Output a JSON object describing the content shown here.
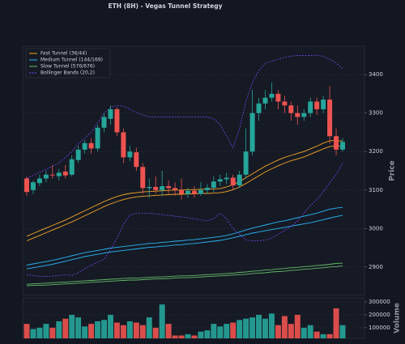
{
  "chart_data": {
    "type": "candlestick",
    "title": "ETH (8H) - Vegas Tunnel Strategy",
    "ylabel": "Price",
    "y2label": "Volume",
    "ylim": [
      2826,
      3474
    ],
    "yticks": [
      2900,
      3000,
      3100,
      3200,
      3300,
      3400
    ],
    "y2lim": [
      18000,
      331000
    ],
    "y2ticks": [
      100000,
      200000,
      300000
    ],
    "up_color": "#26a69a",
    "down_color": "#ef5350",
    "grid": true,
    "legend": "upper left",
    "open": [
      3130,
      3100,
      3118,
      3130,
      3140,
      3136,
      3148,
      3140,
      3178,
      3205,
      3222,
      3208,
      3262,
      3285,
      3310,
      3250,
      3185,
      3198,
      3160,
      3105,
      3108,
      3100,
      3110,
      3105,
      3100,
      3090,
      3098,
      3090,
      3100,
      3106,
      3122,
      3128,
      3132,
      3112,
      3140,
      3200,
      3300,
      3325,
      3340,
      3350,
      3330,
      3320,
      3300,
      3290,
      3300,
      3330,
      3310,
      3335,
      3240,
      3205
    ],
    "high": [
      3135,
      3125,
      3140,
      3150,
      3165,
      3155,
      3165,
      3190,
      3215,
      3230,
      3235,
      3270,
      3300,
      3320,
      3315,
      3260,
      3215,
      3210,
      3170,
      3130,
      3135,
      3150,
      3125,
      3120,
      3130,
      3105,
      3110,
      3120,
      3115,
      3135,
      3140,
      3145,
      3140,
      3150,
      3260,
      3360,
      3340,
      3360,
      3380,
      3360,
      3345,
      3330,
      3320,
      3310,
      3340,
      3340,
      3345,
      3370,
      3260,
      3235
    ],
    "low": [
      3085,
      3090,
      3110,
      3120,
      3130,
      3125,
      3130,
      3135,
      3170,
      3195,
      3195,
      3200,
      3250,
      3270,
      3240,
      3170,
      3175,
      3150,
      3090,
      3080,
      3090,
      3085,
      3090,
      3085,
      3075,
      3080,
      3080,
      3085,
      3090,
      3095,
      3110,
      3115,
      3100,
      3105,
      3130,
      3190,
      3280,
      3310,
      3330,
      3310,
      3300,
      3280,
      3270,
      3280,
      3290,
      3295,
      3300,
      3220,
      3190,
      3200
    ],
    "close": [
      3095,
      3120,
      3130,
      3140,
      3138,
      3145,
      3138,
      3180,
      3205,
      3222,
      3208,
      3262,
      3290,
      3310,
      3250,
      3185,
      3200,
      3160,
      3105,
      3108,
      3100,
      3110,
      3105,
      3100,
      3090,
      3098,
      3090,
      3100,
      3106,
      3122,
      3128,
      3132,
      3112,
      3140,
      3200,
      3300,
      3325,
      3340,
      3350,
      3330,
      3320,
      3300,
      3290,
      3300,
      3330,
      3310,
      3335,
      3240,
      3205,
      3225
    ],
    "volume": [
      130000,
      90000,
      100000,
      130000,
      100000,
      150000,
      170000,
      200000,
      180000,
      110000,
      130000,
      150000,
      160000,
      200000,
      140000,
      120000,
      150000,
      140000,
      120000,
      180000,
      100000,
      280000,
      130000,
      40000,
      40000,
      50000,
      40000,
      70000,
      80000,
      130000,
      110000,
      130000,
      140000,
      160000,
      170000,
      180000,
      200000,
      170000,
      210000,
      120000,
      190000,
      130000,
      200000,
      100000,
      120000,
      70000,
      50000,
      50000,
      250000,
      120000
    ],
    "overlays": [
      {
        "name": "Fast Tunnel (36/44)",
        "color": "#f5a623",
        "dashed": false,
        "lines": [
          [
            2980,
            2987,
            2994,
            3001,
            3008,
            3015,
            3022,
            3030,
            3038,
            3046,
            3054,
            3062,
            3070,
            3077,
            3083,
            3088,
            3091,
            3093,
            3095,
            3096,
            3097,
            3098,
            3099,
            3100,
            3100,
            3101,
            3101,
            3102,
            3102,
            3103,
            3104,
            3108,
            3114,
            3122,
            3132,
            3142,
            3152,
            3162,
            3170,
            3178,
            3185,
            3190,
            3195,
            3200,
            3207,
            3214,
            3222,
            3228,
            3229,
            3227
          ],
          [
            2968,
            2975,
            2982,
            2989,
            2996,
            3003,
            3010,
            3017,
            3025,
            3033,
            3041,
            3049,
            3057,
            3064,
            3070,
            3075,
            3079,
            3082,
            3084,
            3085,
            3086,
            3087,
            3088,
            3089,
            3089,
            3090,
            3090,
            3091,
            3091,
            3092,
            3093,
            3096,
            3101,
            3108,
            3117,
            3127,
            3137,
            3147,
            3155,
            3163,
            3170,
            3176,
            3181,
            3186,
            3193,
            3200,
            3207,
            3213,
            3215,
            3214
          ]
        ]
      },
      {
        "name": "Medium Tunnel (144/169)",
        "color": "#29b6f6",
        "dashed": false,
        "lines": [
          [
            2905,
            2908,
            2911,
            2914,
            2917,
            2921,
            2925,
            2929,
            2933,
            2937,
            2940,
            2943,
            2946,
            2949,
            2951,
            2953,
            2955,
            2957,
            2959,
            2961,
            2962,
            2964,
            2965,
            2967,
            2968,
            2970,
            2971,
            2973,
            2975,
            2977,
            2979,
            2982,
            2986,
            2991,
            2996,
            3001,
            3005,
            3009,
            3013,
            3017,
            3020,
            3024,
            3028,
            3032,
            3036,
            3040,
            3045,
            3050,
            3053,
            3055
          ],
          [
            2895,
            2898,
            2901,
            2904,
            2907,
            2911,
            2915,
            2919,
            2923,
            2927,
            2930,
            2933,
            2936,
            2939,
            2941,
            2943,
            2945,
            2947,
            2949,
            2951,
            2952,
            2954,
            2955,
            2957,
            2958,
            2960,
            2961,
            2963,
            2965,
            2967,
            2969,
            2972,
            2976,
            2980,
            2984,
            2988,
            2991,
            2994,
            2997,
            3000,
            3003,
            3006,
            3009,
            3012,
            3015,
            3019,
            3023,
            3027,
            3031,
            3034
          ]
        ]
      },
      {
        "name": "Slow Tunnel (576/676)",
        "color": "#66bb6a",
        "dashed": false,
        "lines": [
          [
            2855,
            2856,
            2857,
            2858,
            2859,
            2860,
            2861,
            2862,
            2863,
            2864,
            2865,
            2866,
            2867,
            2868,
            2869,
            2870,
            2871,
            2871,
            2872,
            2873,
            2874,
            2874,
            2875,
            2876,
            2877,
            2877,
            2878,
            2879,
            2880,
            2881,
            2882,
            2883,
            2884,
            2886,
            2887,
            2889,
            2890,
            2892,
            2893,
            2895,
            2896,
            2898,
            2899,
            2901,
            2902,
            2904,
            2905,
            2907,
            2909,
            2910
          ],
          [
            2851,
            2852,
            2852,
            2853,
            2854,
            2855,
            2856,
            2857,
            2858,
            2859,
            2860,
            2861,
            2862,
            2863,
            2864,
            2865,
            2866,
            2866,
            2867,
            2868,
            2869,
            2869,
            2870,
            2871,
            2872,
            2872,
            2873,
            2874,
            2875,
            2876,
            2877,
            2878,
            2879,
            2880,
            2881,
            2883,
            2884,
            2885,
            2887,
            2888,
            2889,
            2891,
            2892,
            2894,
            2895,
            2897,
            2898,
            2900,
            2901,
            2903
          ]
        ]
      },
      {
        "name": "Bollinger Bands (20,2)",
        "color": "#7c4dff",
        "dashed": true,
        "lines": [
          [
            3130,
            3138,
            3146,
            3154,
            3162,
            3170,
            3185,
            3200,
            3220,
            3235,
            3250,
            3275,
            3300,
            3315,
            3320,
            3318,
            3310,
            3302,
            3295,
            3290,
            3290,
            3290,
            3290,
            3290,
            3290,
            3290,
            3290,
            3290,
            3290,
            3285,
            3270,
            3240,
            3210,
            3260,
            3330,
            3380,
            3410,
            3430,
            3435,
            3440,
            3445,
            3448,
            3450,
            3450,
            3450,
            3450,
            3448,
            3440,
            3430,
            3415
          ],
          [
            2880,
            2878,
            2876,
            2875,
            2876,
            2878,
            2880,
            2878,
            2885,
            2895,
            2905,
            2912,
            2920,
            2945,
            2975,
            3010,
            3035,
            3040,
            3040,
            3040,
            3038,
            3036,
            3034,
            3032,
            3030,
            3028,
            3025,
            3022,
            3020,
            3025,
            3040,
            3025,
            3000,
            2985,
            2970,
            2968,
            2968,
            2970,
            2975,
            2985,
            2995,
            3005,
            3020,
            3040,
            3060,
            3075,
            3095,
            3120,
            3140,
            3170
          ]
        ]
      }
    ]
  }
}
